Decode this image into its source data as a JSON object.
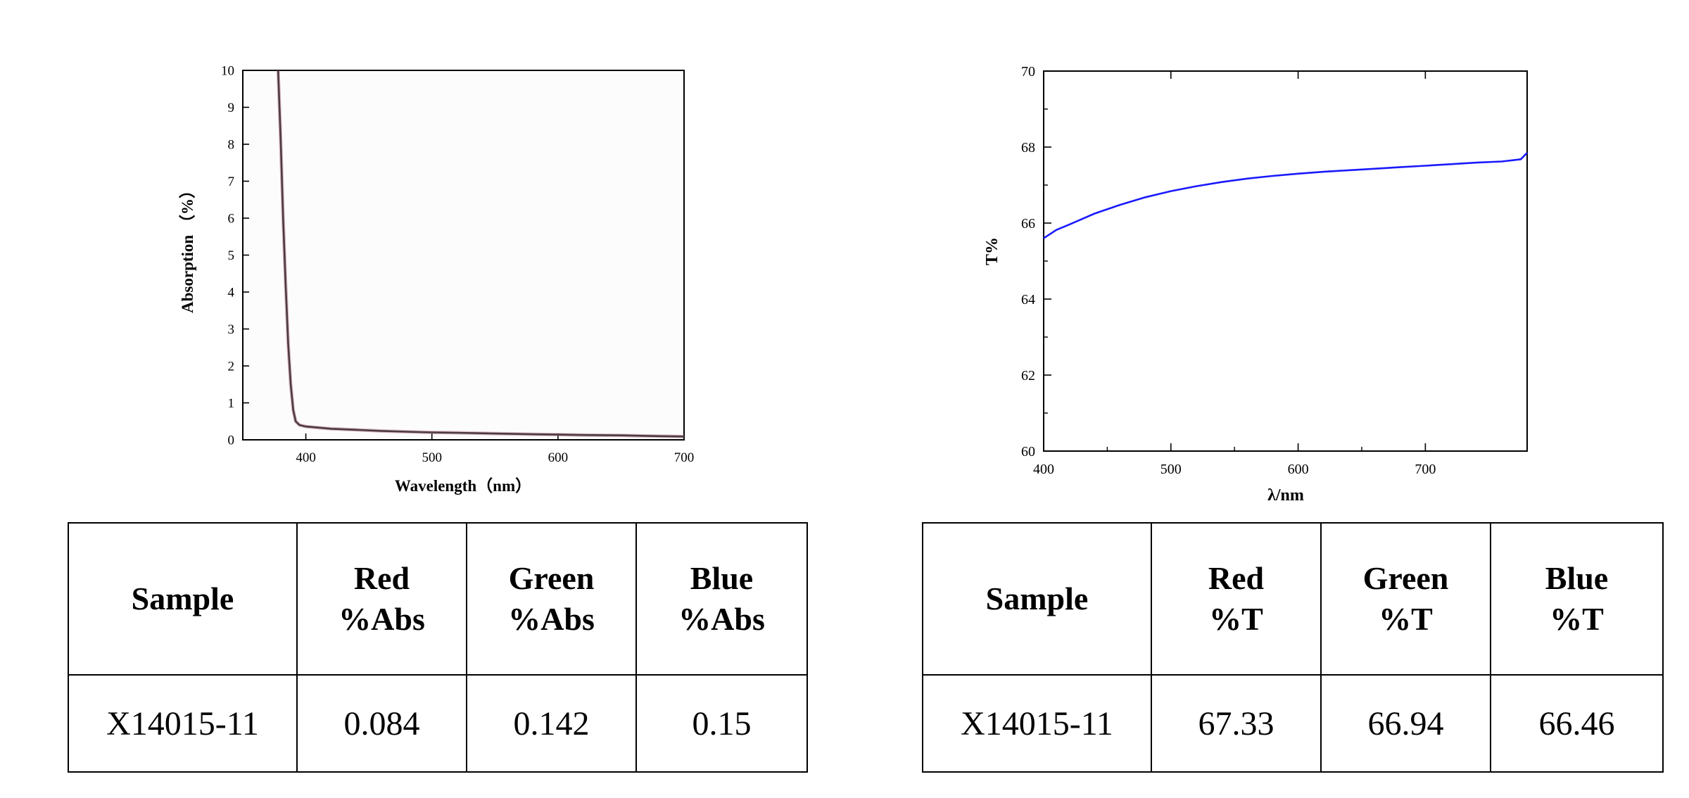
{
  "chart_data": [
    {
      "type": "line",
      "title": "",
      "xlabel": "Wavelength（nm）",
      "ylabel": "Absorption （%）",
      "xlim": [
        350,
        700
      ],
      "ylim": [
        0,
        10
      ],
      "xticks": [
        400,
        500,
        600,
        700
      ],
      "yticks": [
        0,
        1,
        2,
        3,
        4,
        5,
        6,
        7,
        8,
        9,
        10
      ],
      "grid": false,
      "series": [
        {
          "color": "#4a3a44",
          "x": [
            378,
            380,
            382,
            384,
            386,
            388,
            390,
            392,
            395,
            400,
            410,
            420,
            440,
            460,
            480,
            500,
            520,
            550,
            580,
            600,
            620,
            650,
            680,
            700
          ],
          "y": [
            10,
            8.2,
            6.0,
            4.2,
            2.6,
            1.5,
            0.8,
            0.5,
            0.4,
            0.36,
            0.33,
            0.3,
            0.27,
            0.24,
            0.22,
            0.2,
            0.19,
            0.17,
            0.15,
            0.14,
            0.13,
            0.12,
            0.1,
            0.09
          ]
        }
      ]
    },
    {
      "type": "line",
      "title": "",
      "xlabel": "λ/nm",
      "ylabel": "T%",
      "xlim": [
        400,
        780
      ],
      "ylim": [
        60,
        70
      ],
      "xticks": [
        400,
        500,
        600,
        700
      ],
      "yticks": [
        60,
        62,
        64,
        66,
        68,
        70
      ],
      "grid": false,
      "series": [
        {
          "color": "#1a1aff",
          "x": [
            400,
            410,
            420,
            440,
            460,
            480,
            500,
            520,
            540,
            560,
            580,
            600,
            620,
            640,
            660,
            680,
            700,
            720,
            740,
            760,
            770,
            775,
            780
          ],
          "y": [
            65.6,
            65.82,
            65.96,
            66.25,
            66.48,
            66.68,
            66.84,
            66.97,
            67.08,
            67.17,
            67.24,
            67.3,
            67.35,
            67.39,
            67.43,
            67.47,
            67.51,
            67.55,
            67.59,
            67.62,
            67.66,
            67.68,
            67.85
          ]
        }
      ]
    }
  ],
  "tables": [
    {
      "headers": [
        [
          "Sample",
          ""
        ],
        [
          "Red",
          "%Abs"
        ],
        [
          "Green",
          "%Abs"
        ],
        [
          "Blue",
          "%Abs"
        ]
      ],
      "row": [
        "X14015-11",
        "0.084",
        "0.142",
        "0.15"
      ]
    },
    {
      "headers": [
        [
          "Sample",
          ""
        ],
        [
          "Red",
          "%T"
        ],
        [
          "Green",
          "%T"
        ],
        [
          "Blue",
          "%T"
        ]
      ],
      "row": [
        "X14015-11",
        "67.33",
        "66.94",
        "66.46"
      ]
    }
  ]
}
